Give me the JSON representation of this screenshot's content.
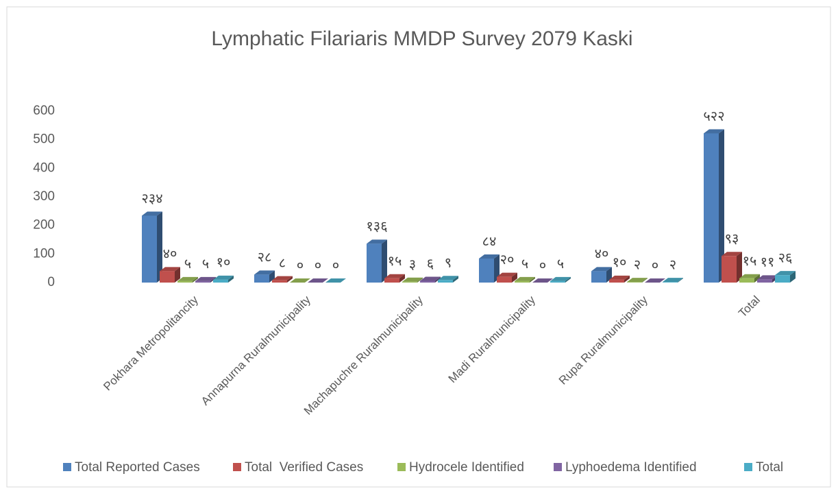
{
  "chart_data": {
    "type": "bar3d",
    "title": "Lymphatic Filariaris MMDP Survey 2079 Kaski",
    "categories": [
      "Pokhara Metropolitancity",
      "Annapurna Ruralmunicipality",
      "Machapuchre Ruralmunicipality",
      "Madi Ruralmunicipality",
      "Rupa Ruralmunicipality",
      "Total"
    ],
    "series": [
      {
        "name": "Total Reported Cases",
        "color": "#4f81bd",
        "values": [
          234,
          28,
          136,
          84,
          40,
          522
        ],
        "value_labels": [
          "२३४",
          "२८",
          "१३६",
          "८४",
          "४०",
          "५२२"
        ]
      },
      {
        "name": "Total  Verified Cases",
        "color": "#c0504d",
        "values": [
          40,
          8,
          15,
          20,
          10,
          93
        ],
        "value_labels": [
          "४०",
          "८",
          "१५",
          "२०",
          "१०",
          "९३"
        ]
      },
      {
        "name": "Hydrocele Identified",
        "color": "#9bbb59",
        "values": [
          5,
          0,
          3,
          5,
          2,
          15
        ],
        "value_labels": [
          "५",
          "०",
          "३",
          "५",
          "२",
          "१५"
        ]
      },
      {
        "name": "Lyphoedema Identified",
        "color": "#8064a2",
        "values": [
          5,
          0,
          6,
          0,
          0,
          11
        ],
        "value_labels": [
          "५",
          "०",
          "६",
          "०",
          "०",
          "११"
        ]
      },
      {
        "name": "Total",
        "color": "#4bacc6",
        "values": [
          10,
          0,
          9,
          5,
          2,
          26
        ],
        "value_labels": [
          "१०",
          "०",
          "९",
          "५",
          "२",
          "२६"
        ]
      }
    ],
    "ylim": [
      0,
      600
    ],
    "yticks": [
      0,
      100,
      200,
      300,
      400,
      500,
      600
    ],
    "legend": "bottom"
  }
}
